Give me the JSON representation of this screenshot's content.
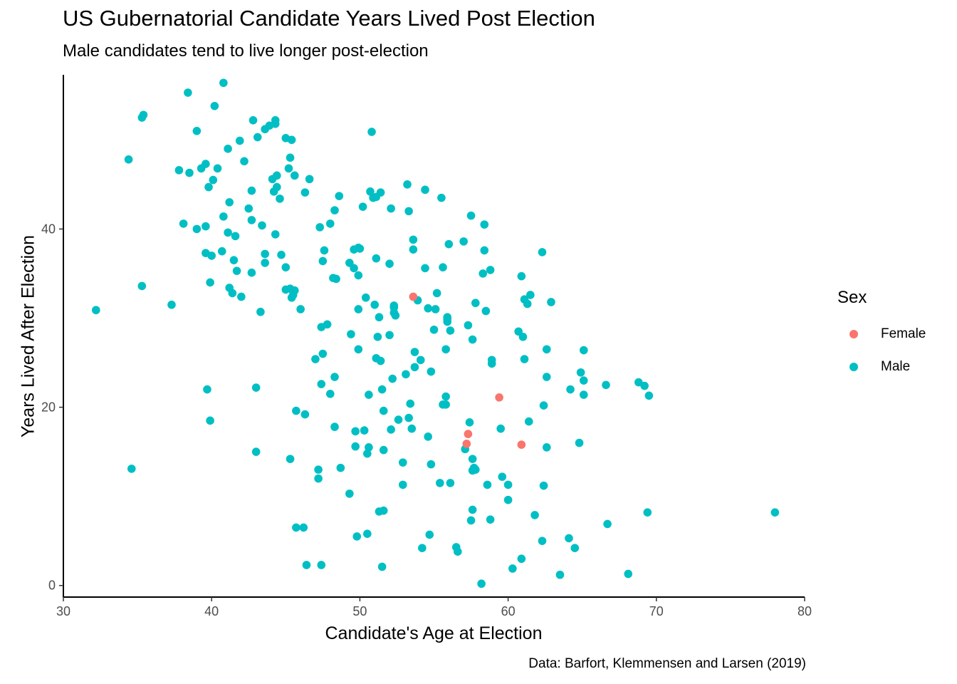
{
  "title": "US Gubernatorial Candidate Years Lived Post Election",
  "subtitle": "Male candidates tend to live longer post-election",
  "caption": "Data: Barfort, Klemmensen and Larsen (2019)",
  "legend": {
    "title": "Sex",
    "items": [
      {
        "label": "Female",
        "color": "#F8766D"
      },
      {
        "label": "Male",
        "color": "#00BFC4"
      }
    ]
  },
  "chart_data": {
    "type": "scatter",
    "title": "US Gubernatorial Candidate Years Lived Post Election",
    "subtitle": "Male candidates tend to live longer post-election",
    "xlabel": "Candidate's Age at Election",
    "ylabel": "Years Lived After Election",
    "xlim": [
      30,
      80
    ],
    "ylim": [
      -1.3,
      57.3
    ],
    "x_ticks": [
      30,
      40,
      50,
      60,
      70,
      80
    ],
    "y_ticks": [
      0,
      20,
      40
    ],
    "grid": false,
    "legend_position": "right",
    "series": [
      {
        "name": "Female",
        "color": "#F8766D",
        "points": [
          [
            53.6,
            32.4
          ],
          [
            59.4,
            21.1
          ],
          [
            57.3,
            17.0
          ],
          [
            57.2,
            15.9
          ],
          [
            60.9,
            15.8
          ]
        ]
      },
      {
        "name": "Male",
        "color": "#00BFC4",
        "points": [
          [
            32.2,
            30.9
          ],
          [
            34.4,
            47.8
          ],
          [
            34.6,
            13.1
          ],
          [
            35.3,
            52.5
          ],
          [
            35.4,
            52.8
          ],
          [
            35.3,
            33.6
          ],
          [
            37.3,
            31.5
          ],
          [
            37.8,
            46.6
          ],
          [
            38.1,
            40.6
          ],
          [
            38.4,
            55.3
          ],
          [
            38.5,
            46.3
          ],
          [
            39.0,
            51.0
          ],
          [
            39.0,
            40.0
          ],
          [
            39.3,
            46.8
          ],
          [
            39.6,
            47.3
          ],
          [
            39.6,
            37.3
          ],
          [
            39.6,
            40.3
          ],
          [
            39.8,
            44.7
          ],
          [
            39.7,
            22.0
          ],
          [
            39.9,
            18.5
          ],
          [
            39.9,
            34.0
          ],
          [
            40.0,
            37.0
          ],
          [
            40.1,
            45.5
          ],
          [
            40.2,
            53.8
          ],
          [
            40.4,
            46.8
          ],
          [
            40.7,
            37.5
          ],
          [
            40.8,
            41.4
          ],
          [
            40.8,
            56.4
          ],
          [
            41.1,
            39.6
          ],
          [
            41.1,
            49.0
          ],
          [
            41.2,
            43.0
          ],
          [
            41.2,
            33.4
          ],
          [
            41.4,
            32.8
          ],
          [
            41.5,
            36.5
          ],
          [
            41.6,
            39.2
          ],
          [
            41.7,
            35.3
          ],
          [
            41.9,
            49.9
          ],
          [
            42.0,
            32.4
          ],
          [
            42.2,
            47.6
          ],
          [
            42.5,
            42.3
          ],
          [
            42.7,
            41.0
          ],
          [
            42.7,
            44.3
          ],
          [
            42.8,
            52.2
          ],
          [
            42.7,
            35.1
          ],
          [
            43.0,
            22.2
          ],
          [
            43.0,
            15.0
          ],
          [
            43.1,
            50.3
          ],
          [
            43.3,
            30.7
          ],
          [
            43.4,
            40.4
          ],
          [
            43.6,
            51.2
          ],
          [
            43.6,
            37.2
          ],
          [
            43.6,
            36.2
          ],
          [
            43.9,
            51.6
          ],
          [
            44.1,
            45.6
          ],
          [
            44.2,
            44.2
          ],
          [
            44.3,
            52.2
          ],
          [
            44.3,
            51.8
          ],
          [
            44.3,
            39.4
          ],
          [
            44.4,
            46.0
          ],
          [
            44.4,
            44.7
          ],
          [
            44.6,
            43.4
          ],
          [
            44.7,
            37.1
          ],
          [
            45.0,
            50.2
          ],
          [
            45.0,
            35.7
          ],
          [
            45.0,
            33.2
          ],
          [
            45.2,
            46.8
          ],
          [
            45.3,
            48.0
          ],
          [
            45.3,
            33.3
          ],
          [
            45.4,
            50.0
          ],
          [
            45.3,
            14.2
          ],
          [
            45.4,
            32.3
          ],
          [
            45.5,
            32.6
          ],
          [
            45.6,
            46.0
          ],
          [
            45.6,
            33.1
          ],
          [
            45.7,
            19.6
          ],
          [
            45.7,
            6.5
          ],
          [
            46.0,
            31.0
          ],
          [
            46.2,
            6.5
          ],
          [
            46.3,
            19.2
          ],
          [
            46.3,
            44.1
          ],
          [
            46.4,
            2.3
          ],
          [
            46.6,
            45.6
          ],
          [
            47.0,
            25.4
          ],
          [
            47.2,
            13.0
          ],
          [
            47.2,
            12.0
          ],
          [
            47.3,
            40.2
          ],
          [
            47.4,
            29.0
          ],
          [
            47.4,
            2.3
          ],
          [
            47.4,
            22.6
          ],
          [
            47.5,
            36.4
          ],
          [
            47.5,
            26.0
          ],
          [
            47.6,
            37.6
          ],
          [
            47.8,
            29.3
          ],
          [
            48.0,
            40.6
          ],
          [
            48.0,
            21.5
          ],
          [
            48.2,
            34.5
          ],
          [
            48.3,
            42.1
          ],
          [
            48.3,
            23.4
          ],
          [
            48.3,
            17.8
          ],
          [
            48.4,
            34.4
          ],
          [
            48.6,
            43.7
          ],
          [
            48.7,
            13.2
          ],
          [
            49.3,
            36.2
          ],
          [
            49.4,
            28.2
          ],
          [
            49.3,
            10.3
          ],
          [
            49.6,
            35.6
          ],
          [
            49.6,
            37.7
          ],
          [
            49.7,
            17.3
          ],
          [
            49.7,
            15.6
          ],
          [
            49.8,
            5.5
          ],
          [
            49.9,
            37.9
          ],
          [
            49.9,
            34.8
          ],
          [
            49.9,
            26.5
          ],
          [
            49.9,
            31.0
          ],
          [
            50.0,
            37.8
          ],
          [
            50.2,
            42.5
          ],
          [
            50.3,
            17.4
          ],
          [
            50.4,
            32.3
          ],
          [
            50.5,
            14.8
          ],
          [
            50.5,
            5.8
          ],
          [
            50.6,
            15.5
          ],
          [
            50.6,
            21.4
          ],
          [
            50.7,
            44.2
          ],
          [
            50.8,
            50.9
          ],
          [
            50.9,
            43.5
          ],
          [
            51.0,
            31.5
          ],
          [
            51.1,
            43.6
          ],
          [
            51.1,
            25.5
          ],
          [
            51.1,
            36.7
          ],
          [
            51.2,
            27.9
          ],
          [
            51.3,
            8.3
          ],
          [
            51.3,
            30.1
          ],
          [
            51.4,
            25.2
          ],
          [
            51.4,
            44.1
          ],
          [
            51.5,
            22.0
          ],
          [
            51.5,
            2.1
          ],
          [
            51.6,
            8.4
          ],
          [
            51.6,
            19.6
          ],
          [
            51.6,
            15.2
          ],
          [
            52.0,
            28.1
          ],
          [
            52.0,
            36.1
          ],
          [
            52.1,
            42.3
          ],
          [
            52.1,
            17.5
          ],
          [
            52.2,
            23.2
          ],
          [
            52.3,
            30.6
          ],
          [
            52.3,
            31.2
          ],
          [
            52.3,
            31.4
          ],
          [
            52.4,
            30.3
          ],
          [
            52.6,
            18.6
          ],
          [
            52.9,
            13.8
          ],
          [
            52.9,
            11.3
          ],
          [
            53.1,
            23.7
          ],
          [
            53.2,
            45.0
          ],
          [
            53.3,
            42.0
          ],
          [
            53.3,
            18.8
          ],
          [
            53.4,
            20.4
          ],
          [
            53.5,
            17.6
          ],
          [
            53.6,
            37.7
          ],
          [
            53.6,
            38.8
          ],
          [
            53.7,
            26.2
          ],
          [
            53.7,
            24.5
          ],
          [
            53.9,
            32.0
          ],
          [
            54.1,
            25.3
          ],
          [
            54.2,
            4.2
          ],
          [
            54.4,
            44.4
          ],
          [
            54.4,
            35.6
          ],
          [
            54.6,
            31.1
          ],
          [
            54.6,
            16.7
          ],
          [
            54.7,
            5.7
          ],
          [
            54.8,
            24.0
          ],
          [
            54.8,
            13.6
          ],
          [
            55.0,
            28.7
          ],
          [
            55.1,
            31.0
          ],
          [
            55.2,
            32.8
          ],
          [
            55.4,
            11.5
          ],
          [
            55.5,
            43.5
          ],
          [
            55.6,
            35.7
          ],
          [
            55.6,
            20.3
          ],
          [
            55.8,
            26.5
          ],
          [
            55.8,
            21.2
          ],
          [
            55.8,
            20.3
          ],
          [
            55.9,
            29.9
          ],
          [
            55.9,
            30.1
          ],
          [
            55.9,
            29.6
          ],
          [
            56.0,
            38.3
          ],
          [
            56.1,
            28.6
          ],
          [
            56.1,
            11.5
          ],
          [
            56.5,
            4.3
          ],
          [
            56.6,
            3.8
          ],
          [
            57.0,
            38.6
          ],
          [
            57.1,
            15.3
          ],
          [
            57.3,
            29.2
          ],
          [
            57.4,
            18.3
          ],
          [
            57.5,
            41.5
          ],
          [
            57.5,
            7.3
          ],
          [
            57.6,
            27.6
          ],
          [
            57.6,
            14.2
          ],
          [
            57.6,
            12.9
          ],
          [
            57.6,
            8.5
          ],
          [
            57.7,
            13.2
          ],
          [
            57.8,
            13.0
          ],
          [
            57.8,
            31.7
          ],
          [
            58.2,
            0.2
          ],
          [
            58.3,
            35.0
          ],
          [
            58.4,
            40.5
          ],
          [
            58.4,
            37.6
          ],
          [
            58.5,
            30.8
          ],
          [
            58.6,
            11.3
          ],
          [
            58.8,
            35.4
          ],
          [
            58.8,
            7.4
          ],
          [
            58.9,
            24.9
          ],
          [
            58.9,
            25.3
          ],
          [
            59.5,
            17.6
          ],
          [
            59.6,
            12.2
          ],
          [
            60.0,
            11.3
          ],
          [
            60.0,
            9.6
          ],
          [
            60.3,
            1.9
          ],
          [
            60.7,
            28.5
          ],
          [
            60.9,
            34.7
          ],
          [
            60.9,
            3.0
          ],
          [
            61.0,
            27.9
          ],
          [
            61.1,
            25.4
          ],
          [
            61.1,
            32.1
          ],
          [
            61.3,
            31.6
          ],
          [
            61.4,
            18.4
          ],
          [
            61.5,
            32.6
          ],
          [
            61.8,
            7.9
          ],
          [
            62.3,
            37.4
          ],
          [
            62.4,
            11.2
          ],
          [
            62.3,
            5.0
          ],
          [
            62.4,
            20.2
          ],
          [
            62.6,
            26.5
          ],
          [
            62.6,
            23.4
          ],
          [
            62.6,
            15.5
          ],
          [
            62.9,
            31.8
          ],
          [
            63.5,
            1.2
          ],
          [
            64.1,
            5.3
          ],
          [
            64.2,
            22.0
          ],
          [
            64.5,
            4.2
          ],
          [
            64.8,
            16.0
          ],
          [
            64.9,
            23.9
          ],
          [
            65.1,
            23.0
          ],
          [
            65.1,
            26.4
          ],
          [
            65.1,
            21.4
          ],
          [
            66.6,
            22.5
          ],
          [
            66.7,
            6.9
          ],
          [
            68.1,
            1.3
          ],
          [
            68.8,
            22.8
          ],
          [
            69.2,
            22.4
          ],
          [
            69.4,
            8.2
          ],
          [
            69.5,
            21.3
          ],
          [
            78.0,
            8.2
          ]
        ]
      }
    ]
  }
}
